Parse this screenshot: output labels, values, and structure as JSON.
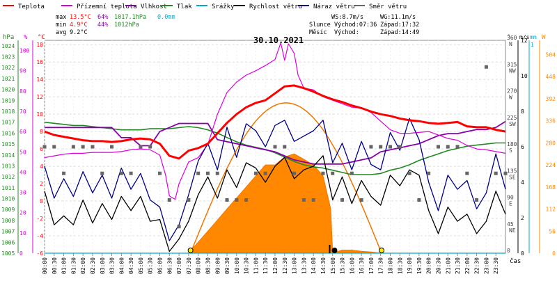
{
  "chart_data": {
    "type": "line",
    "title": "30.10.2021",
    "legend": [
      {
        "label": "Teplota",
        "color": "#ff0000"
      },
      {
        "label": "Přízemní teplota",
        "color": "#dd00dd"
      },
      {
        "label": "Vlhkost",
        "color": "#8800aa"
      },
      {
        "label": "Tlak",
        "color": "#228822"
      },
      {
        "label": "Srážky",
        "color": "#00aacc"
      },
      {
        "label": "Rychlost větru",
        "color": "#000000"
      },
      {
        "label": "Náraz větru",
        "color": "#000088"
      },
      {
        "label": "Směr větru",
        "color": "#666666"
      }
    ],
    "stats": {
      "rows": [
        {
          "label": "max",
          "temp": "13.5°C",
          "hum": "64%",
          "press": "1017.1hPa",
          "rain": "0.0mm"
        },
        {
          "label": "min",
          "temp": "4.9°C",
          "hum": "44%",
          "press": "1012hPa",
          "rain": ""
        },
        {
          "label": "avg",
          "temp": "9.2°C",
          "hum": "",
          "press": "",
          "rain": ""
        }
      ],
      "ws": "WS:8.7m/s",
      "wg": "WG:11.1m/s",
      "slunce_label": "Slunce",
      "mesic_label": "Měsíc",
      "sun_rise": "Východ:07:36",
      "sun_set": "Západ:17:32",
      "moon_rise": "Východ:",
      "moon_set": "Západ:14:49"
    },
    "axes": {
      "hpa": {
        "label": "hPa",
        "ticks": [
          "1024",
          "1023",
          "1022",
          "1021",
          "1020",
          "1019",
          "1018",
          "1017",
          "1016",
          "1015",
          "1014",
          "1013",
          "1012",
          "1011",
          "1010",
          "1009",
          "1008",
          "1007",
          "1006",
          "1005"
        ],
        "range": [
          1005,
          1024.5
        ]
      },
      "pct": {
        "label": "%",
        "ticks": [
          "100",
          "90",
          "80",
          "70",
          "60",
          "50",
          "40",
          "30",
          "20",
          "10",
          "0"
        ],
        "range": [
          0,
          105
        ]
      },
      "temp": {
        "label": "°C",
        "ticks": [
          "18",
          "16",
          "14",
          "12",
          "10",
          "8",
          "6",
          "4",
          "2",
          "0",
          "-2",
          "-4",
          "-6"
        ],
        "range": [
          -6,
          18.5
        ]
      },
      "dir": {
        "label": "°",
        "ticks": [
          "360",
          "315",
          "270",
          "225",
          "180",
          "135",
          "90",
          "45",
          "0"
        ],
        "names": [
          "N",
          "NW",
          "W",
          "SW",
          "S",
          "SE",
          "E",
          "NE",
          ""
        ],
        "range": [
          0,
          360
        ]
      },
      "ms": {
        "label": "m/s",
        "ticks": [
          "12",
          "10",
          "8",
          "6",
          "4",
          "2",
          "0"
        ],
        "range": [
          0,
          12
        ]
      },
      "mm": {
        "label": "mm",
        "ticks": [
          "1"
        ],
        "range": [
          0,
          1
        ]
      },
      "w": {
        "label": "W",
        "ticks": [
          "504",
          "448",
          "392",
          "336",
          "280",
          "224",
          "168",
          "112",
          "56",
          "0"
        ],
        "range": [
          0,
          540
        ]
      },
      "x_label": "čas"
    },
    "x_ticks": [
      "00:00",
      "00:30",
      "01:00",
      "01:30",
      "02:00",
      "02:30",
      "03:00",
      "03:30",
      "04:00",
      "04:30",
      "05:00",
      "05:30",
      "06:00",
      "06:30",
      "07:00",
      "07:30",
      "08:00",
      "08:30",
      "09:00",
      "09:30",
      "10:00",
      "10:30",
      "11:00",
      "11:30",
      "12:00",
      "12:30",
      "13:00",
      "13:30",
      "14:00",
      "14:30",
      "15:00",
      "15:30",
      "16:00",
      "16:30",
      "17:00",
      "17:30",
      "18:00",
      "18:30",
      "19:00",
      "19:30",
      "20:00",
      "20:30",
      "21:00",
      "21:30",
      "22:00",
      "22:30",
      "23:00",
      "23:30"
    ],
    "series": {
      "teplota": {
        "name": "Teplota",
        "color": "#ff0000",
        "x": [
          0,
          0.5,
          1,
          1.5,
          2,
          2.5,
          3,
          3.5,
          4,
          4.5,
          5,
          5.5,
          6,
          6.5,
          7,
          7.5,
          8,
          8.5,
          9,
          9.5,
          10,
          10.5,
          11,
          11.5,
          12,
          12.5,
          13,
          13.5,
          14,
          14.5,
          15,
          15.5,
          16,
          16.5,
          17,
          17.5,
          18,
          18.5,
          19,
          19.5,
          20,
          20.5,
          21,
          21.5,
          22,
          22.5,
          23,
          23.5,
          24
        ],
        "y": [
          8,
          7.6,
          7.4,
          7.2,
          7,
          6.9,
          6.9,
          6.8,
          6.9,
          7.1,
          7.2,
          7.1,
          6.6,
          5.2,
          4.9,
          5.8,
          6.1,
          6.6,
          7.8,
          9,
          10,
          10.8,
          11.3,
          11.6,
          12.4,
          13.2,
          13.3,
          13,
          12.6,
          12.1,
          11.7,
          11.4,
          11,
          10.7,
          10.3,
          10,
          9.8,
          9.5,
          9.3,
          9.2,
          9,
          8.9,
          9,
          9.1,
          8.6,
          8.5,
          8.5,
          8.2,
          8
        ]
      },
      "prizemni": {
        "name": "Přízemní teplota",
        "color": "#dd00dd",
        "x": [
          0,
          0.5,
          1,
          1.5,
          2,
          2.5,
          3,
          3.5,
          4,
          4.5,
          5,
          5.5,
          6,
          6.3,
          6.5,
          6.8,
          7,
          7.5,
          8,
          8.5,
          9,
          9.5,
          10,
          10.5,
          11,
          11.5,
          12,
          12.3,
          12.5,
          12.7,
          13,
          13.2,
          13.5,
          14,
          14.5,
          15,
          15.5,
          16,
          16.5,
          17,
          17.5,
          18,
          18.5,
          19,
          19.5,
          20,
          20.5,
          21,
          21.5,
          22,
          22.5,
          23,
          23.5,
          24
        ],
        "y": [
          5,
          5.2,
          5.4,
          5.5,
          5.5,
          5.6,
          5.6,
          5.6,
          5.7,
          5.9,
          6,
          5.9,
          5.3,
          3,
          0.6,
          0.2,
          2,
          4.5,
          5,
          6.5,
          10,
          12.5,
          13.7,
          14.5,
          15,
          15.6,
          16.3,
          18.2,
          16.2,
          18.1,
          17,
          14.5,
          13,
          12.8,
          12,
          11.6,
          11.2,
          10.8,
          10.7,
          10.2,
          9.2,
          8.2,
          7.8,
          7.8,
          7.9,
          8,
          7.6,
          7.2,
          7,
          6.4,
          6,
          5.9,
          5.7,
          5.5
        ]
      },
      "vlhkost": {
        "name": "Vlhkost",
        "color": "#8800aa",
        "x": [
          0,
          0.5,
          1,
          1.5,
          2,
          2.5,
          3,
          3.5,
          4,
          4.5,
          5,
          5.5,
          6,
          6.5,
          7,
          7.5,
          8,
          8.5,
          9,
          9.5,
          10,
          10.5,
          11,
          11.5,
          12,
          12.5,
          13,
          13.5,
          14,
          14.5,
          15,
          15.5,
          16,
          16.5,
          17,
          17.5,
          18,
          18.5,
          19,
          19.5,
          20,
          20.5,
          21,
          21.5,
          22,
          22.5,
          23,
          23.5,
          24
        ],
        "y": [
          62,
          62,
          62,
          62,
          62,
          62,
          62,
          62,
          57,
          57,
          53,
          53,
          60,
          62,
          64,
          64,
          64,
          64,
          56,
          55,
          54,
          53,
          52,
          51,
          50,
          48,
          46,
          45,
          44,
          44,
          44,
          44,
          45,
          46,
          47,
          50,
          51,
          52,
          53,
          54,
          56,
          58,
          59,
          59,
          60,
          61,
          61,
          62,
          65
        ]
      },
      "tlak": {
        "name": "Tlak",
        "color": "#228822",
        "x": [
          0,
          0.5,
          1,
          1.5,
          2,
          2.5,
          3,
          3.5,
          4,
          4.5,
          5,
          5.5,
          6,
          6.5,
          7,
          7.5,
          8,
          8.5,
          9,
          9.5,
          10,
          10.5,
          11,
          11.5,
          12,
          12.5,
          13,
          13.5,
          14,
          14.5,
          15,
          15.5,
          16,
          16.5,
          17,
          17.5,
          18,
          18.5,
          19,
          19.5,
          20,
          20.5,
          21,
          21.5,
          22,
          22.5,
          23,
          23.5,
          24
        ],
        "y": [
          1017,
          1016.9,
          1016.8,
          1016.7,
          1016.7,
          1016.6,
          1016.5,
          1016.4,
          1016.3,
          1016.3,
          1016.3,
          1016.4,
          1016.4,
          1016.4,
          1016.5,
          1016.6,
          1016.5,
          1016.3,
          1016,
          1015.6,
          1015.2,
          1014.9,
          1014.7,
          1014.5,
          1014.2,
          1013.8,
          1013.4,
          1013.1,
          1012.9,
          1012.8,
          1012.6,
          1012.4,
          1012.2,
          1012.2,
          1012.2,
          1012.3,
          1012.6,
          1012.8,
          1013.1,
          1013.5,
          1013.8,
          1014.1,
          1014.4,
          1014.6,
          1014.8,
          1014.9,
          1015,
          1015.1,
          1015.1
        ]
      },
      "rychlost": {
        "name": "Rychlost větru",
        "color": "#000000",
        "x": [
          0,
          0.5,
          1,
          1.5,
          2,
          2.5,
          3,
          3.5,
          4,
          4.5,
          5,
          5.5,
          6,
          6.5,
          7,
          7.5,
          8,
          8.5,
          9,
          9.5,
          10,
          10.5,
          11,
          11.5,
          12,
          12.5,
          13,
          13.5,
          14,
          14.5,
          15,
          15.5,
          16,
          16.5,
          17,
          17.5,
          18,
          18.5,
          19,
          19.5,
          20,
          20.5,
          21,
          21.5,
          22,
          22.5,
          23,
          23.5,
          24
        ],
        "y": [
          3.5,
          1.6,
          2.1,
          1.6,
          3,
          1.7,
          2.8,
          1.9,
          3.2,
          2.4,
          3.2,
          1.8,
          1.9,
          0.1,
          0.8,
          1.8,
          3.3,
          4.3,
          3.1,
          4.7,
          3.7,
          5.1,
          4.8,
          4,
          4.9,
          5.4,
          4.2,
          4.7,
          4.9,
          5.5,
          3,
          4.3,
          2.8,
          4.1,
          3.2,
          2.7,
          4.4,
          3.8,
          4.7,
          4.4,
          2.4,
          1.1,
          2.6,
          1.8,
          2.2,
          1.1,
          1.8,
          3.5,
          2.2
        ]
      },
      "naraz": {
        "name": "Náraz větru",
        "color": "#000088",
        "x": [
          0,
          0.5,
          1,
          1.5,
          2,
          2.5,
          3,
          3.5,
          4,
          4.5,
          5,
          5.5,
          6,
          6.5,
          7,
          7.5,
          8,
          8.5,
          9,
          9.5,
          10,
          10.5,
          11,
          11.5,
          12,
          12.5,
          13,
          13.5,
          14,
          14.5,
          15,
          15.5,
          16,
          16.5,
          17,
          17.5,
          18,
          18.5,
          19,
          19.5,
          20,
          20.5,
          21,
          21.5,
          22,
          22.5,
          23,
          23.5,
          24
        ],
        "y": [
          4.9,
          3.1,
          4.2,
          3.2,
          4.6,
          3.4,
          4.4,
          3.1,
          4.8,
          3.6,
          4.5,
          3,
          2.6,
          0.7,
          1.6,
          3.3,
          5.2,
          6.2,
          4.7,
          7.1,
          5.4,
          7.3,
          6.9,
          6,
          7.2,
          7.5,
          6.3,
          6.6,
          6.9,
          7.5,
          5.1,
          6.2,
          4.7,
          6.3,
          5,
          4.7,
          6.8,
          5.8,
          7.6,
          6.4,
          4,
          2.4,
          4.4,
          3.6,
          4.1,
          2.5,
          3.4,
          5.6,
          3.6
        ]
      },
      "smer": {
        "name": "Směr větru",
        "color": "#666666",
        "x": [
          0,
          0.5,
          1,
          1.5,
          2,
          2.5,
          3,
          3.5,
          4,
          4.5,
          5,
          5.5,
          6,
          6.5,
          7,
          7.5,
          8,
          8.5,
          9,
          9.5,
          10,
          10.5,
          11,
          11.5,
          12,
          12.5,
          13,
          13.5,
          14,
          14.5,
          15,
          15.5,
          16,
          16.5,
          17,
          17.5,
          18,
          18.5,
          19,
          19.5,
          20,
          20.5,
          21,
          21.5,
          22,
          22.5,
          23,
          23.5,
          24
        ],
        "y": [
          180,
          180,
          135,
          180,
          180,
          180,
          135,
          180,
          135,
          135,
          180,
          180,
          135,
          90,
          45,
          90,
          135,
          135,
          135,
          90,
          90,
          90,
          135,
          135,
          180,
          180,
          135,
          90,
          90,
          135,
          135,
          90,
          135,
          90,
          180,
          180,
          180,
          180,
          135,
          90,
          135,
          180,
          180,
          180,
          135,
          90,
          315,
          135,
          135
        ]
      },
      "srazky": {
        "name": "Srážky",
        "color": "#00aacc",
        "x": [
          0,
          24
        ],
        "y": [
          0,
          0
        ]
      },
      "radiace": {
        "name": "Sluneční záření",
        "color": "#ff8800",
        "x": [
          7.5,
          8,
          8.5,
          9,
          9.5,
          10,
          10.5,
          11,
          11.5,
          12,
          12.5,
          13,
          13.5,
          14,
          14.5,
          14.9,
          15,
          15.5,
          16,
          16.5,
          17,
          17.5
        ],
        "y": [
          0,
          28,
          56,
          84,
          112,
          140,
          168,
          196,
          224,
          224,
          244,
          252,
          238,
          224,
          196,
          112,
          0,
          8,
          8,
          5,
          3,
          0
        ]
      }
    },
    "sun_markers": [
      7.6,
      15.1,
      17.55
    ]
  }
}
